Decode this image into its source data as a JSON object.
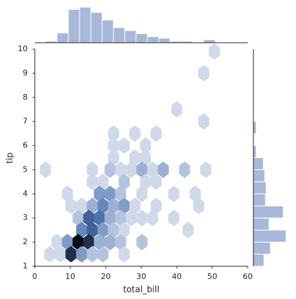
{
  "chart_data": [
    {
      "type": "hexbin",
      "x_label": "total_bill",
      "y_label": "tip",
      "color": "#4c72b0",
      "xlim": [
        0,
        60
      ],
      "ylim": [
        1,
        10
      ],
      "xticks": [
        0,
        10,
        20,
        30,
        40,
        50,
        60
      ],
      "yticks": [
        1,
        2,
        3,
        4,
        5,
        6,
        7,
        8,
        9,
        10
      ],
      "x": [
        50.6,
        47.6,
        40,
        47.6,
        22.2,
        28.2,
        34.2,
        25.2,
        31.2,
        22.2,
        22.2,
        31.2,
        28.2,
        3,
        16.2,
        21.2,
        24.2,
        27.2,
        30.2,
        33.2,
        36.2,
        42.2,
        48.2,
        16.2,
        19.2,
        25.2,
        31.2,
        34.2,
        9.2,
        18.2,
        21.2,
        24.2,
        30.2,
        39.2,
        45.2,
        10.2,
        13.2,
        16.2,
        19.2,
        22.2,
        25.2,
        28.2,
        34.2,
        46.2,
        12.2,
        15.2,
        18.2,
        21.2,
        24.2,
        27.2,
        30.2,
        33.2,
        39.2,
        13.2,
        16.2,
        19.2,
        22.2,
        25.2,
        43.2,
        6.2,
        9.2,
        12.2,
        15.2,
        18.2,
        21.2,
        24.2,
        30.2,
        4.2,
        7.2,
        10.2,
        13.2,
        16.2,
        19.2,
        25.2
      ],
      "y": [
        9.9,
        9.0,
        7.5,
        7.0,
        6.5,
        6.5,
        6.5,
        6.0,
        6.0,
        6.0,
        5.5,
        5.5,
        5.5,
        5.0,
        5.0,
        5.0,
        5.0,
        5.0,
        5.0,
        5.0,
        5.0,
        5.0,
        5.0,
        4.5,
        4.5,
        4.5,
        4.5,
        4.5,
        4.0,
        4.0,
        4.0,
        4.0,
        4.0,
        4.0,
        4.0,
        3.5,
        3.5,
        3.5,
        3.5,
        3.5,
        3.5,
        3.5,
        3.5,
        3.5,
        3.0,
        3.0,
        3.0,
        3.0,
        3.0,
        3.0,
        3.0,
        3.0,
        3.0,
        2.5,
        2.5,
        2.5,
        2.5,
        2.5,
        2.5,
        2.0,
        2.0,
        2.0,
        2.0,
        2.0,
        2.0,
        2.0,
        2.0,
        1.5,
        1.5,
        1.5,
        1.5,
        1.5,
        1.5,
        1.5
      ],
      "values": [
        1,
        1,
        1,
        1,
        1,
        1,
        1,
        1,
        1,
        1,
        1,
        1,
        1,
        1,
        1,
        2,
        1,
        1,
        3,
        1,
        3,
        2,
        1,
        1,
        1,
        2,
        1,
        1,
        1,
        4,
        4,
        2,
        1,
        1,
        1,
        1,
        1,
        3,
        5,
        3,
        4,
        1,
        1,
        1,
        2,
        7,
        6,
        3,
        2,
        1,
        1,
        1,
        1,
        5,
        7,
        4,
        2,
        1,
        1,
        1,
        4,
        12,
        10,
        3,
        3,
        2,
        2,
        1,
        1,
        10,
        4,
        2,
        2,
        1
      ]
    },
    {
      "type": "histogram",
      "orientation": "vertical",
      "color": "#a8b8d8",
      "bins": [
        3.07,
        6.25,
        9.44,
        12.62,
        15.8,
        18.99,
        22.17,
        25.35,
        28.53,
        31.72,
        34.9,
        38.08,
        41.27,
        44.45,
        47.63,
        50.81
      ],
      "values": [
        2,
        13,
        44,
        47,
        40,
        30,
        20,
        16,
        12,
        8,
        6,
        2,
        2,
        1,
        4
      ]
    },
    {
      "type": "histogram",
      "orientation": "horizontal",
      "color": "#a8b8d8",
      "bins": [
        1,
        1.5,
        2,
        2.5,
        3,
        3.5,
        4,
        4.5,
        5,
        5.5,
        6,
        6.5,
        7,
        7.5,
        8,
        8.5,
        9,
        9.5,
        10
      ],
      "values": [
        15,
        24,
        46,
        22,
        42,
        17,
        18,
        16,
        14,
        4,
        0,
        4,
        0,
        0,
        0,
        0,
        0,
        1
      ]
    }
  ]
}
